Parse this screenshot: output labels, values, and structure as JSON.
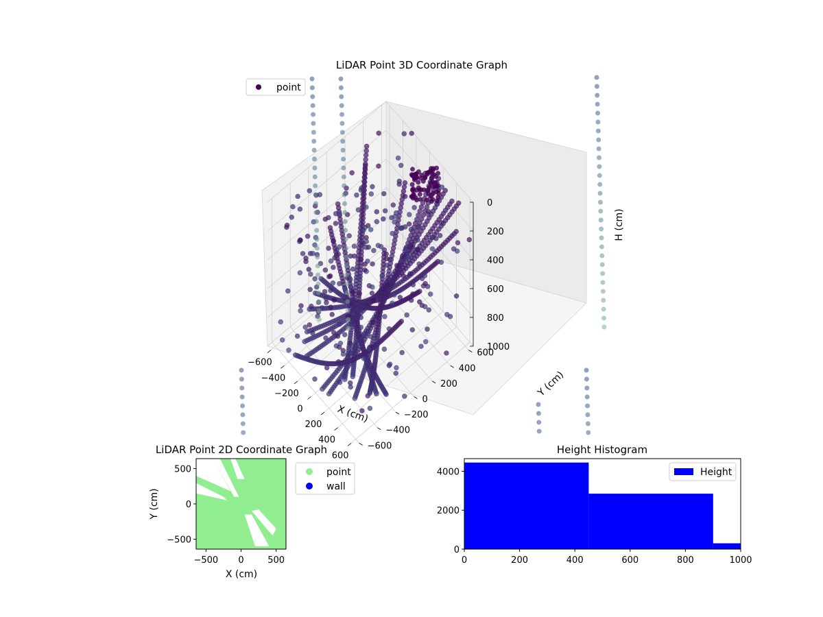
{
  "chart_data": [
    {
      "type": "scatter",
      "projection": "3d",
      "title": "LiDAR Point 3D Coordinate Graph",
      "xlabel": "X (cm)",
      "ylabel": "Y (cm)",
      "zlabel": "H (cm)",
      "xticks": [
        "−600",
        "−400",
        "−200",
        "0",
        "200",
        "400",
        "600"
      ],
      "yticks": [
        "−600",
        "−400",
        "−200",
        "0",
        "200",
        "400",
        "600"
      ],
      "zticks": [
        "0",
        "200",
        "400",
        "600",
        "800",
        "1000"
      ],
      "xlim": [
        -650,
        650
      ],
      "ylim": [
        -650,
        650
      ],
      "zlim": [
        0,
        1000
      ],
      "z_inverted": true,
      "grid": true,
      "legend": {
        "position": "top-left",
        "entries": [
          "point"
        ]
      },
      "colors": {
        "near": "#440154",
        "mid": "#3b528b",
        "far": "#90d793"
      },
      "series": [
        {
          "name": "point",
          "arcs": [
            {
              "start": [
                -600,
                400,
                150
              ],
              "end": [
                300,
                -500,
                800
              ],
              "n": 70
            },
            {
              "start": [
                -550,
                350,
                230
              ],
              "end": [
                350,
                -450,
                780
              ],
              "n": 70
            },
            {
              "start": [
                -620,
                100,
                400
              ],
              "end": [
                500,
                -300,
                900
              ],
              "n": 70
            },
            {
              "start": [
                -600,
                0,
                500
              ],
              "end": [
                500,
                -200,
                950
              ],
              "n": 70
            },
            {
              "start": [
                -300,
                600,
                350
              ],
              "end": [
                450,
                -500,
                850
              ],
              "n": 70
            },
            {
              "start": [
                100,
                600,
                100
              ],
              "end": [
                200,
                -600,
                900
              ],
              "n": 70
            },
            {
              "start": [
                200,
                600,
                50
              ],
              "end": [
                100,
                -600,
                920
              ],
              "n": 70
            },
            {
              "start": [
                300,
                600,
                80
              ],
              "end": [
                -200,
                -550,
                880
              ],
              "n": 70
            },
            {
              "start": [
                400,
                600,
                100
              ],
              "end": [
                -300,
                -500,
                860
              ],
              "n": 70
            },
            {
              "start": [
                500,
                600,
                60
              ],
              "end": [
                -400,
                -400,
                900
              ],
              "n": 70
            },
            {
              "start": [
                600,
                500,
                150
              ],
              "end": [
                -500,
                -300,
                850
              ],
              "n": 70
            },
            {
              "start": [
                600,
                300,
                250
              ],
              "end": [
                -550,
                -200,
                820
              ],
              "n": 70
            },
            {
              "start": [
                600,
                100,
                350
              ],
              "end": [
                -600,
                -100,
                800
              ],
              "n": 70
            },
            {
              "start": [
                600,
                -100,
                450
              ],
              "end": [
                -300,
                -600,
                900
              ],
              "n": 70
            },
            {
              "start": [
                -200,
                300,
                600
              ],
              "end": [
                400,
                -300,
                950
              ],
              "n": 60
            }
          ]
        }
      ]
    },
    {
      "type": "scatter",
      "title": "LiDAR Point 2D Coordinate Graph",
      "xlabel": "X (cm)",
      "ylabel": "Y (cm)",
      "xticks": [
        "−500",
        "0",
        "500"
      ],
      "yticks": [
        "−500",
        "0",
        "500"
      ],
      "xlim": [
        -640,
        640
      ],
      "ylim": [
        -640,
        640
      ],
      "legend": {
        "position": "right",
        "entries": [
          "point",
          "wall"
        ]
      },
      "colors": {
        "point": "#90ee90",
        "wall": "#0000ff"
      },
      "series": [
        {
          "name": "point",
          "coverage": "dense"
        },
        {
          "name": "wall",
          "points": []
        }
      ]
    },
    {
      "type": "bar",
      "subtype": "histogram",
      "title": "Height Histogram",
      "xlabel": "",
      "ylabel": "",
      "xticks": [
        "0",
        "200",
        "400",
        "600",
        "800",
        "1000"
      ],
      "yticks": [
        "0",
        "2000",
        "4000"
      ],
      "xlim": [
        0,
        1000
      ],
      "ylim": [
        0,
        4650
      ],
      "legend": {
        "position": "top-right",
        "entries": [
          "Height"
        ]
      },
      "colors": {
        "bar": "#0000ff"
      },
      "bins": [
        [
          0,
          450
        ],
        [
          450,
          900
        ],
        [
          900,
          1000
        ]
      ],
      "series": [
        {
          "name": "Height",
          "values": [
            4450,
            2850,
            300
          ]
        }
      ]
    }
  ]
}
